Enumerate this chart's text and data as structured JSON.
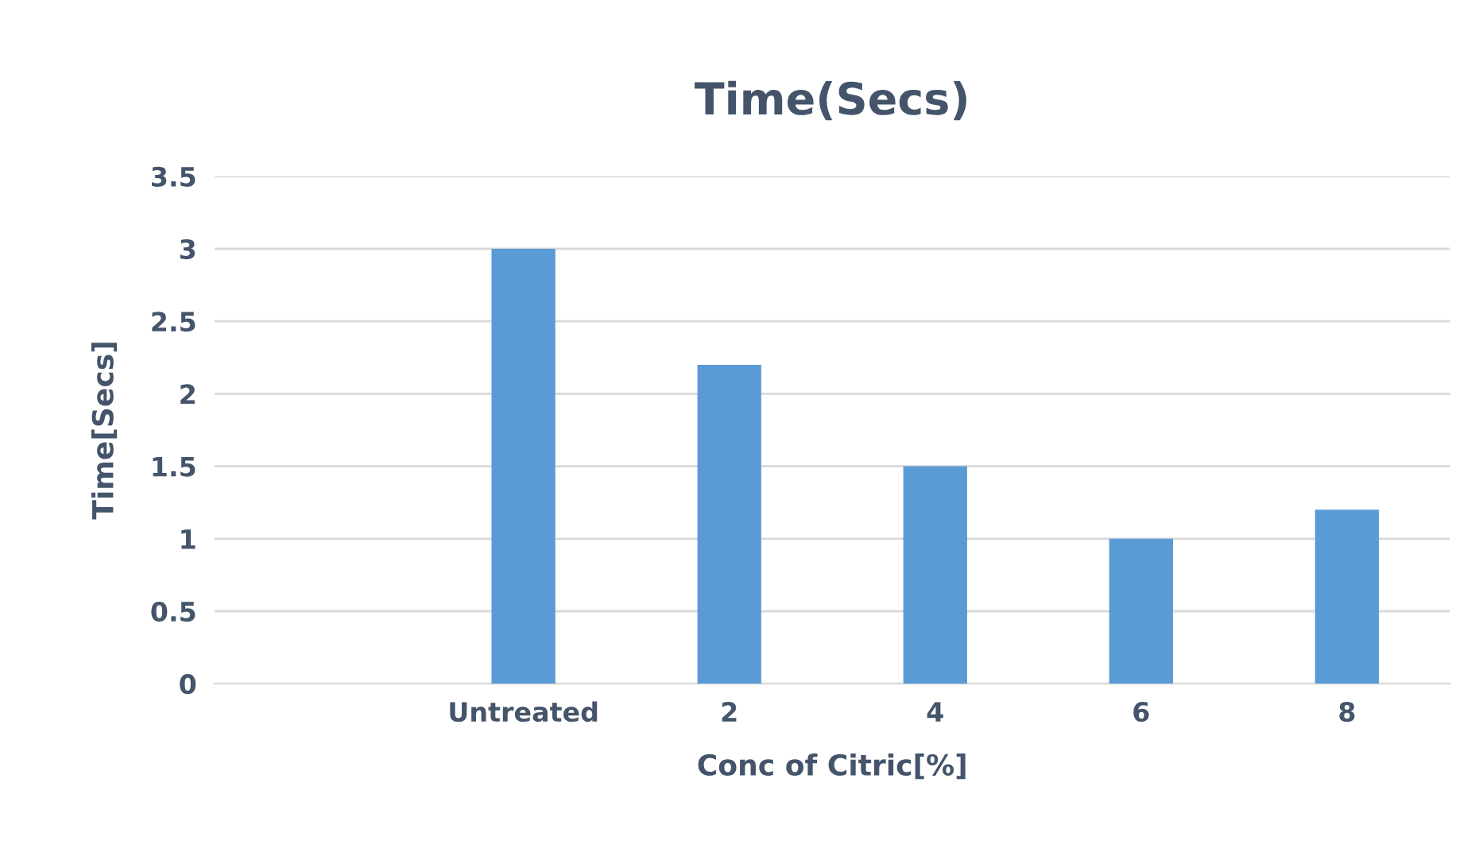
{
  "chart_data": {
    "type": "bar",
    "title": "Time(Secs)",
    "xlabel": "Conc of Citric[%]",
    "ylabel": "Time[Secs]",
    "categories": [
      null,
      "Untreated",
      "2",
      "4",
      "6",
      "8"
    ],
    "values": [
      null,
      3,
      2.2,
      1.5,
      1,
      1.2
    ],
    "color": "#5b9bd5",
    "ylim": [
      0,
      3.5
    ],
    "yticks": [
      0,
      0.5,
      1,
      1.5,
      2,
      2.5,
      3,
      3.5
    ],
    "grid": "y"
  }
}
